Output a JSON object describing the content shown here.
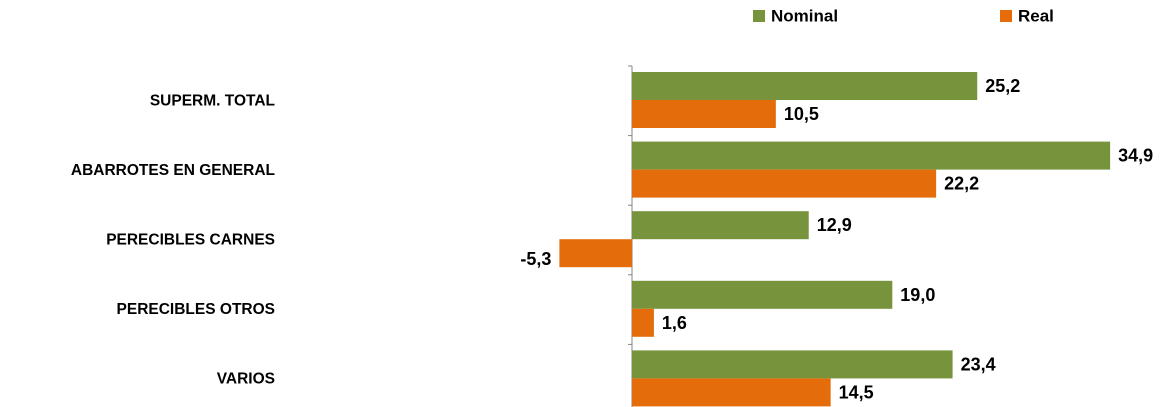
{
  "chart_data": {
    "type": "bar",
    "orientation": "horizontal",
    "categories": [
      "SUPERM. TOTAL",
      "ABARROTES EN GENERAL",
      "PERECIBLES CARNES",
      "PERECIBLES OTROS",
      "VARIOS"
    ],
    "series": [
      {
        "name": "Nominal",
        "color": "#77933C",
        "values": [
          25.2,
          34.9,
          12.9,
          19.0,
          23.4
        ],
        "labels": [
          "25,2",
          "34,9",
          "12,9",
          "19,0",
          "23,4"
        ]
      },
      {
        "name": "Real",
        "color": "#E46C0A",
        "values": [
          10.5,
          22.2,
          -5.3,
          1.6,
          14.5
        ],
        "labels": [
          "10,5",
          "22,2",
          "-5,3",
          "1,6",
          "14,5"
        ]
      }
    ],
    "legend_position": "top",
    "grid": false
  }
}
